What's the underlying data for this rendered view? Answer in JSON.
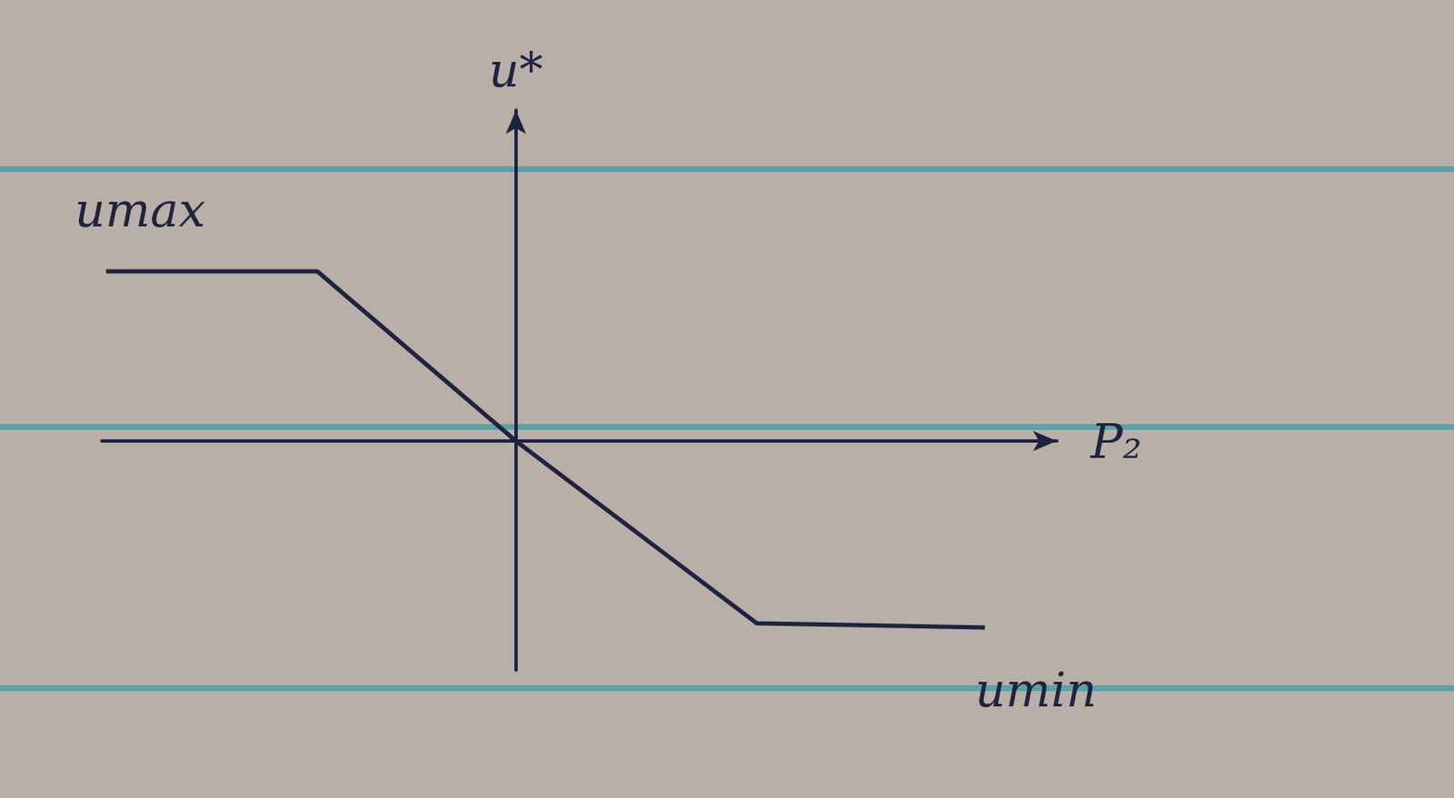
{
  "chart_data": {
    "type": "line",
    "x_label": "P₂",
    "y_label": "u*",
    "x": [
      -4.85,
      -2.35,
      0,
      2.85,
      5.55
    ],
    "values": [
      2.0,
      2.0,
      0,
      -2.15,
      -2.2
    ],
    "xlim": [
      -4.9,
      6.4
    ],
    "ylim": [
      -2.7,
      3.9
    ],
    "annotations": [
      "umax",
      "umin"
    ],
    "color": "#1f2340",
    "line_style": "solid",
    "grid": false,
    "tick_labels": false
  }
}
